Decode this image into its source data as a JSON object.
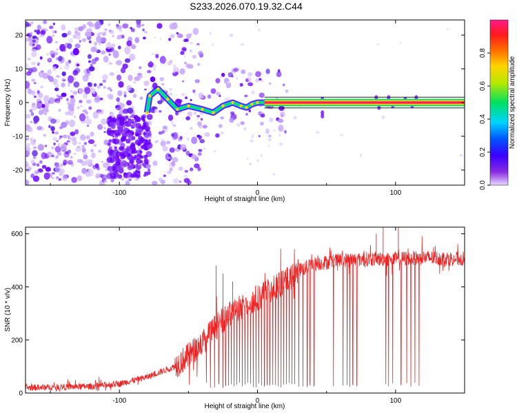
{
  "title": "S233.2026.070.19.32.C44",
  "colors": {
    "snr_line": "#ee2222",
    "ridge": "#ff1a6e",
    "blob": "#6a00ff",
    "blob_faint": "#b38cff",
    "frame": "#000000"
  },
  "chart_data": [
    {
      "type": "heatmap",
      "title": "",
      "xlabel": "Height of straight line (km)",
      "ylabel": "Frequency (Hz)",
      "xlim": [
        -168,
        150
      ],
      "ylim": [
        -24.5,
        24.5
      ],
      "xticks": [
        -100,
        0,
        100
      ],
      "yticks": [
        -20,
        -10,
        0,
        10,
        20
      ],
      "grid": false,
      "ridge": {
        "description": "Concentrated spectral energy near 0 Hz",
        "points": [
          [
            -80,
            -3
          ],
          [
            -78,
            2
          ],
          [
            -72,
            4
          ],
          [
            -65,
            1
          ],
          [
            -58,
            -2
          ],
          [
            -50,
            -1
          ],
          [
            -40,
            -2
          ],
          [
            -32,
            -3
          ],
          [
            -25,
            -1
          ],
          [
            -18,
            0
          ],
          [
            -12,
            -1
          ],
          [
            -8,
            -1.5
          ],
          [
            -4,
            -0.5
          ],
          [
            0,
            0
          ],
          [
            5,
            0
          ],
          [
            20,
            0
          ],
          [
            60,
            0
          ],
          [
            100,
            0
          ],
          [
            150,
            0
          ]
        ],
        "amplitude": 0.95
      },
      "colorbar": {
        "label": "Normalized spectral amplitude",
        "range": [
          0.0,
          1.0
        ],
        "ticks": [
          0.0,
          0.2,
          0.4,
          0.6,
          0.8
        ],
        "colormap": "purple-blue-cyan-green-yellow-orange-red-magenta"
      }
    },
    {
      "type": "line",
      "title": "",
      "xlabel": "Height of straight line (km)",
      "ylabel": "SNR (10 * v/v)",
      "xlim": [
        -168,
        150
      ],
      "ylim": [
        0,
        625
      ],
      "xticks": [
        -100,
        0,
        100
      ],
      "yticks": [
        0,
        200,
        400,
        600
      ],
      "grid": false,
      "series": [
        {
          "name": "SNR",
          "color": "#ee2222",
          "envelope": {
            "x": [
              -168,
              -120,
              -100,
              -80,
              -60,
              -50,
              -40,
              -30,
              -20,
              -10,
              0,
              10,
              20,
              30,
              40,
              60,
              80,
              100,
              120,
              150
            ],
            "y": [
              20,
              25,
              35,
              60,
              100,
              140,
              190,
              250,
              300,
              330,
              360,
              390,
              420,
              460,
              485,
              500,
              505,
              505,
              510,
              505
            ]
          },
          "noise": 20,
          "dropouts": [
            -37,
            -34,
            -31,
            -28,
            -25,
            -23,
            -21,
            -19,
            -17,
            -15,
            -13,
            -11,
            -9,
            -7,
            -5,
            -3,
            -1,
            1,
            3,
            5,
            7,
            9,
            11,
            13,
            15,
            17,
            19,
            21,
            23,
            25,
            27,
            30,
            33,
            36,
            38,
            41,
            55,
            62,
            65,
            67,
            69,
            72,
            93,
            95,
            98,
            104,
            108,
            111,
            114,
            117
          ],
          "spikes": [
            [
              -30,
              480
            ],
            [
              -25,
              450
            ],
            [
              -18,
              420
            ],
            [
              86,
              600
            ],
            [
              91,
              625
            ],
            [
              102,
              625
            ]
          ]
        }
      ]
    }
  ]
}
